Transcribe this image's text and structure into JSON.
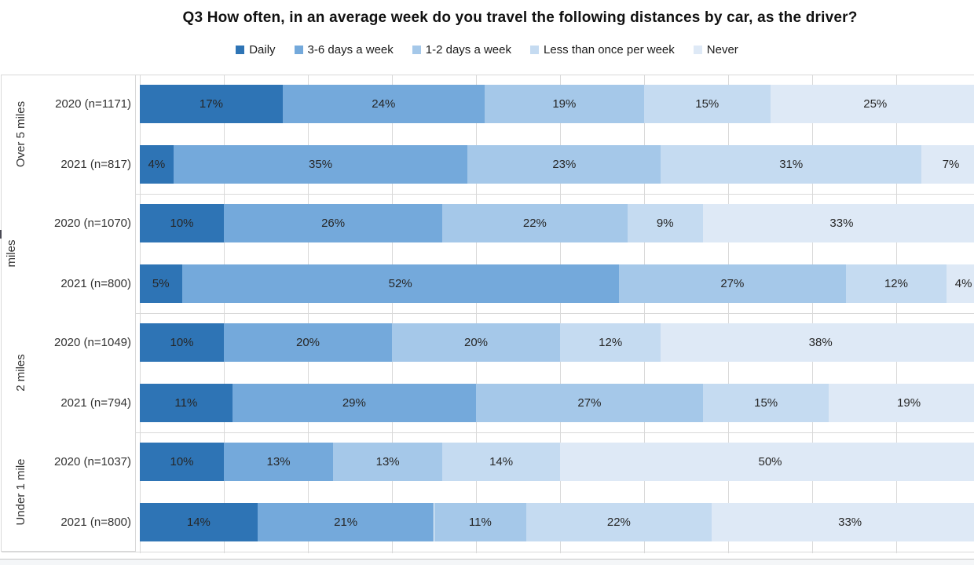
{
  "title": "Q3 How often, in an average week do you travel the following distances by car, as the driver?",
  "chart_data": {
    "type": "bar",
    "subtype": "stacked-100-horizontal",
    "value_suffix": "%",
    "xlim": [
      0,
      100
    ],
    "grid": "vertical, light gray, every 10%",
    "legend_position": "top-center",
    "series_names": [
      "Daily",
      "3-6 days a week",
      "1-2 days a week",
      "Less than once per week",
      "Never"
    ],
    "colors": [
      "#2e74b5",
      "#74a9db",
      "#a5c8e9",
      "#c5dbf1",
      "#dee9f6"
    ],
    "groups": [
      {
        "label": "Over 5 miles",
        "label_partially_clipped": false,
        "rows": [
          {
            "label": "2020 (n=1171)",
            "values": [
              17,
              24,
              19,
              15,
              25
            ]
          },
          {
            "label": "2021 (n=817)",
            "values": [
              4,
              35,
              23,
              31,
              7
            ]
          }
        ]
      },
      {
        "label": "miles",
        "label_partially_clipped": true,
        "rows": [
          {
            "label": "2020 (n=1070)",
            "values": [
              10,
              26,
              22,
              9,
              33
            ]
          },
          {
            "label": "2021 (n=800)",
            "values": [
              5,
              52,
              27,
              12,
              4
            ]
          }
        ]
      },
      {
        "label": "2 miles",
        "label_partially_clipped": false,
        "rows": [
          {
            "label": "2020 (n=1049)",
            "values": [
              10,
              20,
              20,
              12,
              38
            ]
          },
          {
            "label": "2021 (n=794)",
            "values": [
              11,
              29,
              27,
              15,
              19
            ]
          }
        ]
      },
      {
        "label": "Under 1 mile",
        "label_partially_clipped": false,
        "rows": [
          {
            "label": "2020 (n=1037)",
            "values": [
              10,
              13,
              13,
              14,
              50
            ]
          },
          {
            "label": "2021 (n=800)",
            "values": [
              14,
              21,
              11,
              22,
              33
            ]
          }
        ]
      }
    ]
  },
  "colors": {
    "grid": "#d9d9d9",
    "axis_text": "#333333",
    "data_label": "#262626",
    "title_text": "#111111",
    "bottom_rule": "#c6c6c6"
  }
}
